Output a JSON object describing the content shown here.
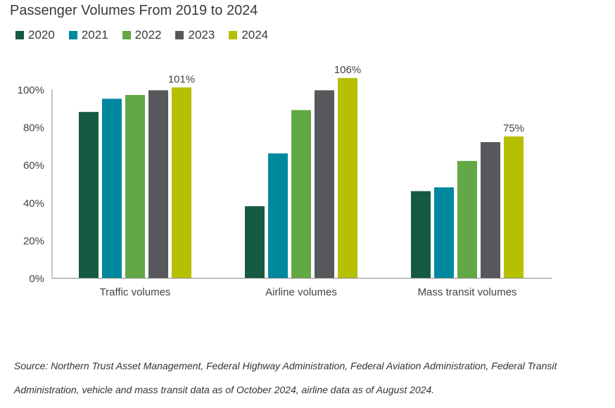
{
  "chart_data": {
    "type": "bar",
    "title": "Passenger Volumes From 2019 to 2024",
    "categories": [
      "Traffic volumes",
      "Airline volumes",
      "Mass transit volumes"
    ],
    "series": [
      {
        "name": "2020",
        "color": "#155a42",
        "values": [
          88,
          38,
          46
        ]
      },
      {
        "name": "2021",
        "color": "#00889e",
        "values": [
          95,
          66,
          48
        ]
      },
      {
        "name": "2022",
        "color": "#62a844",
        "values": [
          97,
          89,
          62
        ]
      },
      {
        "name": "2023",
        "color": "#57585b",
        "values": [
          99.5,
          99.5,
          72
        ]
      },
      {
        "name": "2024",
        "color": "#b7c000",
        "values": [
          101,
          106,
          75
        ]
      }
    ],
    "data_labels": [
      {
        "series": "2024",
        "category": "Traffic volumes",
        "text": "101%"
      },
      {
        "series": "2024",
        "category": "Airline volumes",
        "text": "106%"
      },
      {
        "series": "2024",
        "category": "Mass transit volumes",
        "text": "75%"
      }
    ],
    "y_ticks": [
      "0%",
      "20%",
      "40%",
      "60%",
      "80%",
      "100%"
    ],
    "y_tick_values": [
      0,
      20,
      40,
      60,
      80,
      100
    ],
    "ylim": [
      0,
      100
    ],
    "xlabel": "",
    "ylabel": "",
    "grid": false,
    "legend_placement": "top-left"
  },
  "source_lines": [
    "Source: Northern Trust Asset Management, Federal Highway Administration, Federal Aviation Administration, Federal Transit",
    "Administration, vehicle and mass transit data as of October 2024, airline data as of August 2024."
  ]
}
